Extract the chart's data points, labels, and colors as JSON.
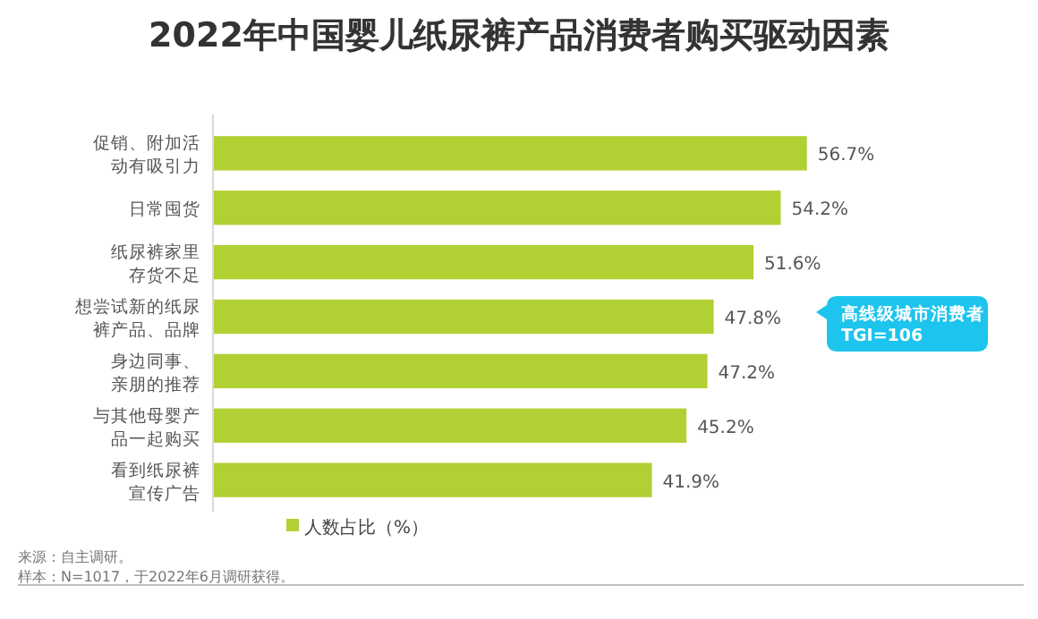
{
  "chart_data": {
    "type": "bar",
    "orientation": "horizontal",
    "title": "2022年中国婴儿纸尿裤产品消费者购买驱动因素",
    "categories": [
      "促销、附加活动有吸引力",
      "日常囤货",
      "纸尿裤家里存货不足",
      "想尝试新的纸尿裤产品、品牌",
      "身边同事、亲朋的推荐",
      "与其他母婴产品一起购买",
      "看到纸尿裤宣传广告"
    ],
    "series": [
      {
        "name": "人数占比（%）",
        "color": "#b1d034",
        "values": [
          56.7,
          54.2,
          51.6,
          47.8,
          47.2,
          45.2,
          41.9
        ],
        "value_labels": [
          "56.7%",
          "54.2%",
          "51.6%",
          "47.8%",
          "47.2%",
          "45.2%",
          "41.9%"
        ]
      }
    ],
    "tick_labels": "y",
    "legend": "bottom",
    "annotations": [
      "高线级城市消费者\nTGI=106",
      "来源：自主调研。",
      "样本：N=1017，于2022年6月调研获得。"
    ]
  }
}
